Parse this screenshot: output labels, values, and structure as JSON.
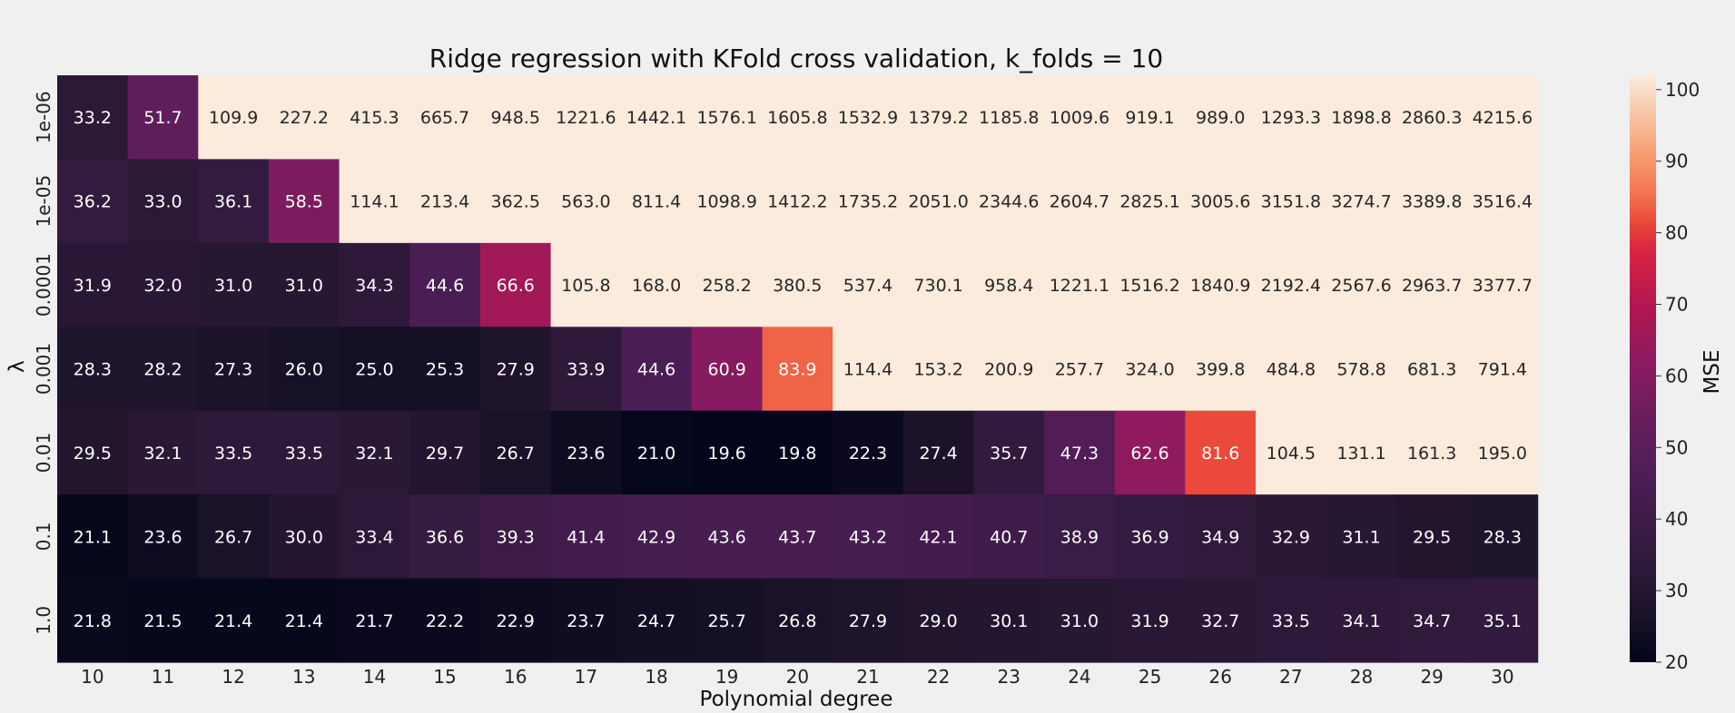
{
  "chart_data": {
    "type": "heatmap",
    "title": "Ridge regression with KFold cross validation, k_folds = 10",
    "xlabel": "Polynomial degree",
    "ylabel": "λ",
    "x_categories": [
      "10",
      "11",
      "12",
      "13",
      "14",
      "15",
      "16",
      "17",
      "18",
      "19",
      "20",
      "21",
      "22",
      "23",
      "24",
      "25",
      "26",
      "27",
      "28",
      "29",
      "30"
    ],
    "y_categories": [
      "1e-06",
      "1e-05",
      "0.0001",
      "0.001",
      "0.01",
      "0.1",
      "1.0"
    ],
    "values": [
      [
        33.2,
        51.7,
        109.9,
        227.2,
        415.3,
        665.7,
        948.5,
        1221.6,
        1442.1,
        1576.1,
        1605.8,
        1532.9,
        1379.2,
        1185.8,
        1009.6,
        919.1,
        989.0,
        1293.3,
        1898.8,
        2860.3,
        4215.6
      ],
      [
        36.2,
        33.0,
        36.1,
        58.5,
        114.1,
        213.4,
        362.5,
        563.0,
        811.4,
        1098.9,
        1412.2,
        1735.2,
        2051.0,
        2344.6,
        2604.7,
        2825.1,
        3005.6,
        3151.8,
        3274.7,
        3389.8,
        3516.4
      ],
      [
        31.9,
        32.0,
        31.0,
        31.0,
        34.3,
        44.6,
        66.6,
        105.8,
        168.0,
        258.2,
        380.5,
        537.4,
        730.1,
        958.4,
        1221.1,
        1516.2,
        1840.9,
        2192.4,
        2567.6,
        2963.7,
        3377.7
      ],
      [
        28.3,
        28.2,
        27.3,
        26.0,
        25.0,
        25.3,
        27.9,
        33.9,
        44.6,
        60.9,
        83.9,
        114.4,
        153.2,
        200.9,
        257.7,
        324.0,
        399.8,
        484.8,
        578.8,
        681.3,
        791.4
      ],
      [
        29.5,
        32.1,
        33.5,
        33.5,
        32.1,
        29.7,
        26.7,
        23.6,
        21.0,
        19.6,
        19.8,
        22.3,
        27.4,
        35.7,
        47.3,
        62.6,
        81.6,
        104.5,
        131.1,
        161.3,
        195.0
      ],
      [
        21.1,
        23.6,
        26.7,
        30.0,
        33.4,
        36.6,
        39.3,
        41.4,
        42.9,
        43.6,
        43.7,
        43.2,
        42.1,
        40.7,
        38.9,
        36.9,
        34.9,
        32.9,
        31.1,
        29.5,
        28.3
      ],
      [
        21.8,
        21.5,
        21.4,
        21.4,
        21.7,
        22.2,
        22.9,
        23.7,
        24.7,
        25.7,
        26.8,
        27.9,
        29.0,
        30.1,
        31.0,
        31.9,
        32.7,
        33.5,
        34.1,
        34.7,
        35.1
      ]
    ],
    "color_range": [
      20,
      102
    ],
    "colormap": "rocket",
    "colorbar": {
      "label": "MSE",
      "ticks": [
        "20",
        "30",
        "40",
        "50",
        "60",
        "70",
        "80",
        "90",
        "100"
      ]
    },
    "grid": false,
    "legend": "colorbar-right"
  }
}
